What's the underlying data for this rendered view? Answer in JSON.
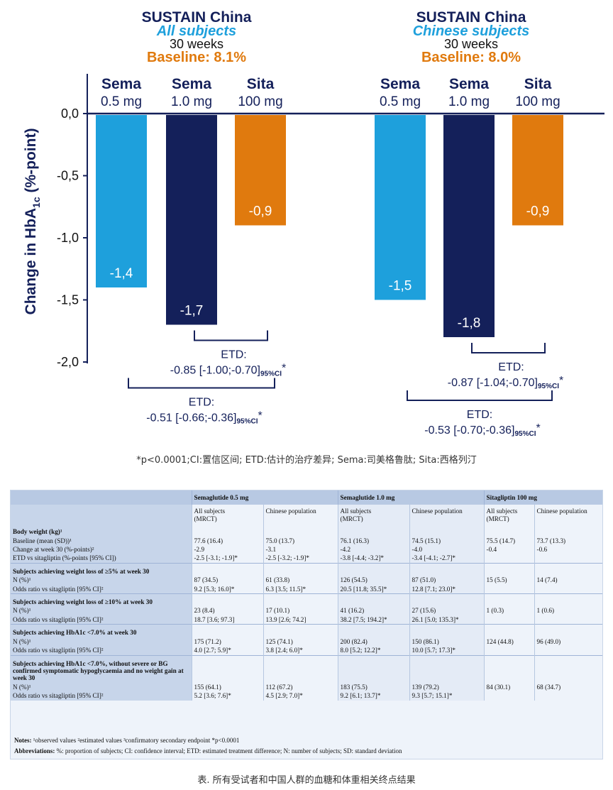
{
  "chart_data": {
    "type": "bar",
    "ylabel_main": "Change in HbA",
    "ylabel_sub": "1c",
    "ylabel_tail": " (%-point)",
    "ylim": [
      -2.0,
      0.0
    ],
    "yticks": [
      0.0,
      -0.5,
      -1.0,
      -1.5,
      -2.0
    ],
    "ytick_labels": [
      "0,0",
      "-0,5",
      "-1,0",
      "-1,5",
      "-2,0"
    ],
    "panels": [
      {
        "title": "SUSTAIN China",
        "subtitle": "All subjects",
        "weeks": "30 weeks",
        "baseline": "Baseline: 8.1%",
        "categories": [
          {
            "name": "Sema",
            "dose": "0.5 mg"
          },
          {
            "name": "Sema",
            "dose": "1.0 mg"
          },
          {
            "name": "Sita",
            "dose": "100 mg"
          }
        ],
        "values": [
          -1.4,
          -1.7,
          -0.9
        ],
        "value_labels": [
          "-1,4",
          "-1,7",
          "-0,9"
        ],
        "etd_upper_label": "ETD:",
        "etd_upper": "-0.85 [-1.00;-0.70]",
        "etd_lower_label": "ETD:",
        "etd_lower": "-0.51 [-0.66;-0.36]",
        "ci_suffix": "95%CI",
        "star": "*"
      },
      {
        "title": "SUSTAIN China",
        "subtitle": "Chinese subjects",
        "weeks": "30 weeks",
        "baseline": "Baseline: 8.0%",
        "categories": [
          {
            "name": "Sema",
            "dose": "0.5 mg"
          },
          {
            "name": "Sema",
            "dose": "1.0 mg"
          },
          {
            "name": "Sita",
            "dose": "100 mg"
          }
        ],
        "values": [
          -1.5,
          -1.8,
          -0.9
        ],
        "value_labels": [
          "-1,5",
          "-1,8",
          "-0,9"
        ],
        "etd_upper_label": "ETD:",
        "etd_upper": "-0.87 [-1.04;-0.70]",
        "etd_lower_label": "ETD:",
        "etd_lower": "-0.53 [-0.70;-0.36]",
        "ci_suffix": "95%CI",
        "star": "*"
      }
    ],
    "colors": [
      "#1ea0dc",
      "#14205a",
      "#e07a0e"
    ]
  },
  "chart_caption": "*p<0.0001;CI:置信区间; ETD:估计的治疗差异; Sema:司美格鲁肽; Sita:西格列汀",
  "table": {
    "groups": [
      "Semaglutide 0.5 mg",
      "Semaglutide 1.0 mg",
      "Sitagliptin 100 mg"
    ],
    "subheaders": [
      "All subjects\n(MRCT)",
      "Chinese population",
      "All subjects\n(MRCT)",
      "Chinese population",
      "All subjects\n(MRCT)",
      "Chinese population"
    ],
    "sections": [
      {
        "title": "Body weight (kg)¹",
        "rows": [
          {
            "label": "Baseline (mean (SD))¹",
            "cells": [
              "77.6 (16.4)",
              "75.0 (13.7)",
              "76.1 (16.3)",
              "74.5 (15.1)",
              "75.5 (14.7)",
              "73.7 (13.3)"
            ]
          },
          {
            "label": "Change at week 30 (%-points)²",
            "cells": [
              "-2.9",
              "-3.1",
              "-4.2",
              "-4.0",
              "-0.4",
              "-0.6"
            ]
          },
          {
            "label": "ETD vs sitagliptin (%-points [95% CI])",
            "cells": [
              "-2.5 [-3.1; -1.9]*",
              "-2.5 [-3.2; -1.9]*",
              "-3.8 [-4.4; -3.2]*",
              "-3.4 [-4.1; -2.7]*",
              "",
              ""
            ]
          }
        ]
      },
      {
        "title": "Subjects achieving weight loss of ≥5% at week 30",
        "rows": [
          {
            "label": "N (%)¹",
            "cells": [
              "87 (34.5)",
              "61 (33.8)",
              "126 (54.5)",
              "87 (51.0)",
              "15 (5.5)",
              "14 (7.4)"
            ]
          },
          {
            "label": "Odds ratio vs sitagliptin [95% CI]²",
            "cells": [
              "9.2 [5.3; 16.0]*",
              "6.3 [3.5; 11.5]*",
              "20.5 [11.8; 35.5]*",
              "12.8 [7.1; 23.0]*",
              "",
              ""
            ]
          }
        ]
      },
      {
        "title": "Subjects achieving weight loss of ≥10% at week 30",
        "rows": [
          {
            "label": "N (%)¹",
            "cells": [
              "23 (8.4)",
              "17 (10.1)",
              "41 (16.2)",
              "27 (15.6)",
              "1 (0.3)",
              "1 (0.6)"
            ]
          },
          {
            "label": "Odds ratio vs sitagliptin [95% CI]²",
            "cells": [
              "18.7 [3.6; 97.3]",
              "13.9 [2.6; 74.2]",
              "38.2 [7.5; 194.2]*",
              "26.1 [5.0; 135.3]*",
              "",
              ""
            ]
          }
        ]
      },
      {
        "title": "Subjects achieving HbA1c <7.0% at week 30",
        "rows": [
          {
            "label": "N (%)¹",
            "cells": [
              "175 (71.2)",
              "125 (74.1)",
              "200 (82.4)",
              "150 (86.1)",
              "124 (44.8)",
              "96 (49.0)"
            ]
          },
          {
            "label": "Odds ratio vs sitagliptin [95% CI]²",
            "cells": [
              "4.0 [2.7; 5.9]*",
              "3.8 [2.4; 6.0]*",
              "8.0 [5.2; 12.2]*",
              "10.0 [5.7; 17.3]*",
              "",
              ""
            ]
          }
        ]
      },
      {
        "title": "Subjects achieving HbA1c <7.0%, without severe or BG confirmed symptomatic hypoglycaemia and no weight gain at week 30",
        "rows": [
          {
            "label": "N (%)¹",
            "cells": [
              "155 (64.1)",
              "112 (67.2)",
              "183 (75.5)",
              "139 (79.2)",
              "84 (30.1)",
              "68 (34.7)"
            ]
          },
          {
            "label": "Odds ratio vs sitagliptin [95% CI]²",
            "cells": [
              "5.2 [3.6; 7.6]*",
              "4.5 [2.9; 7.0]*",
              "9.2 [6.1; 13.7]*",
              "9.3 [5.7; 15.1]*",
              "",
              ""
            ]
          }
        ]
      }
    ]
  },
  "notes": {
    "notes_label": "Notes:",
    "notes_text": " ¹observed values ²estimated values ³confirmatory secondary endpoint *p<0.0001",
    "abbr_label": "Abbreviations:",
    "abbr_text": " %: proportion of subjects; CI: confidence interval; ETD: estimated treatment difference; N: number of subjects; SD: standard deviation"
  },
  "table_caption": "表. 所有受试者和中国人群的血糖和体重相关终点结果"
}
